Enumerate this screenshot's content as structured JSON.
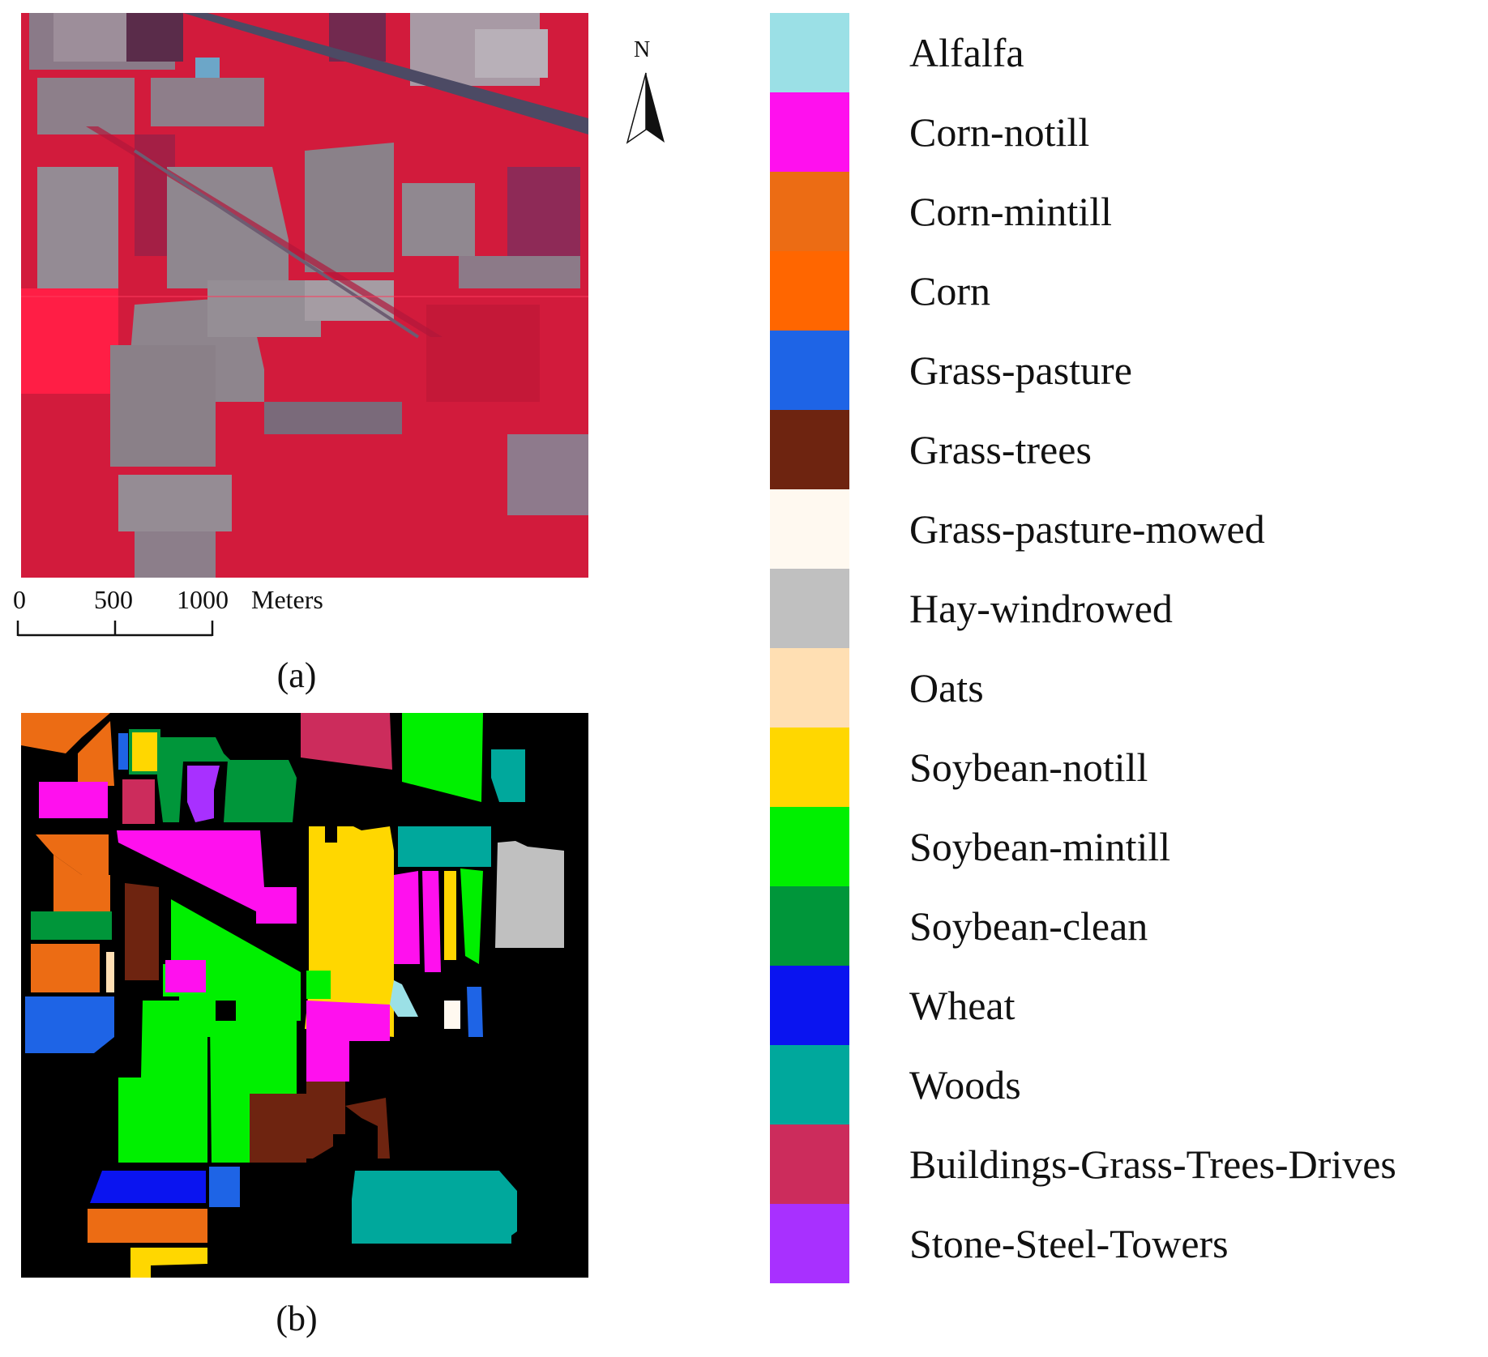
{
  "panel_a": {
    "caption": "(a)",
    "north_label": "N",
    "scale_bar": {
      "ticks": [
        "0",
        "500",
        "1000"
      ],
      "unit": "Meters"
    }
  },
  "panel_b": {
    "caption": "(b)"
  },
  "legend": [
    {
      "label": "Alfalfa",
      "color": "#9be0e6"
    },
    {
      "label": "Corn-notill",
      "color": "#ff10ee"
    },
    {
      "label": "Corn-mintill",
      "color": "#ec6c14"
    },
    {
      "label": "Corn",
      "color": "#ff6600"
    },
    {
      "label": "Grass-pasture",
      "color": "#1e64e6"
    },
    {
      "label": "Grass-trees",
      "color": "#6e2410"
    },
    {
      "label": "Grass-pasture-mowed",
      "color": "#fff9f0"
    },
    {
      "label": "Hay-windrowed",
      "color": "#c0c0c0"
    },
    {
      "label": "Oats",
      "color": "#ffdfb3"
    },
    {
      "label": "Soybean-notill",
      "color": "#ffd700"
    },
    {
      "label": "Soybean-mintill",
      "color": "#00f000"
    },
    {
      "label": "Soybean-clean",
      "color": "#00963a"
    },
    {
      "label": "Wheat",
      "color": "#0a14f0"
    },
    {
      "label": "Woods",
      "color": "#00a89c"
    },
    {
      "label": "Buildings-Grass-Trees-Drives",
      "color": "#cc2c5c"
    },
    {
      "label": "Stone-Steel-Towers",
      "color": "#a830ff"
    }
  ]
}
